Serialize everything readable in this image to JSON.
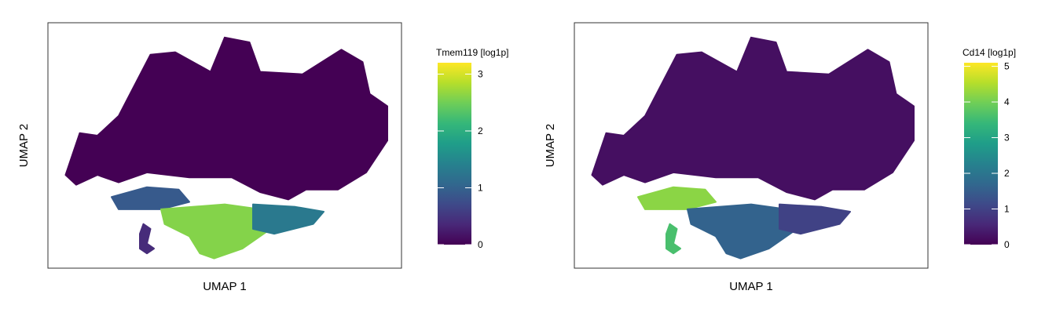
{
  "chart_data": [
    {
      "type": "heatmap",
      "subtype": "umap-feature-plot",
      "gene": "Tmem119",
      "title": "",
      "xlabel": "UMAP 1",
      "ylabel": "UMAP 2",
      "legend_title": "Tmem119 [log1p]",
      "colormap": "viridis",
      "color_range": [
        0,
        3.2
      ],
      "legend_ticks": [
        0,
        1,
        2,
        3
      ],
      "legend_placement": "right",
      "grid": false,
      "expression_clusters": [
        {
          "region": "large-bottom-cluster",
          "level": 2.6
        },
        {
          "region": "bottom-cluster-right-tail",
          "level": 1.3
        },
        {
          "region": "bottom-cluster-upper-band",
          "level": 0.9
        },
        {
          "region": "small-curved-island",
          "level": 0.4
        },
        {
          "region": "upper-main-body",
          "level": 0.0
        }
      ]
    },
    {
      "type": "heatmap",
      "subtype": "umap-feature-plot",
      "gene": "Cd14",
      "title": "",
      "xlabel": "UMAP 1",
      "ylabel": "UMAP 2",
      "legend_title": "Cd14 [log1p]",
      "colormap": "viridis",
      "color_range": [
        0,
        5.1
      ],
      "legend_ticks": [
        0,
        1,
        2,
        3,
        4,
        5
      ],
      "legend_placement": "right",
      "grid": false,
      "expression_clusters": [
        {
          "region": "bottom-cluster-upper-band",
          "level": 4.2
        },
        {
          "region": "small-curved-island",
          "level": 3.6
        },
        {
          "region": "large-bottom-cluster",
          "level": 1.6
        },
        {
          "region": "bottom-cluster-right-tail",
          "level": 1.0
        },
        {
          "region": "upper-main-body",
          "level": 0.2
        }
      ]
    }
  ]
}
